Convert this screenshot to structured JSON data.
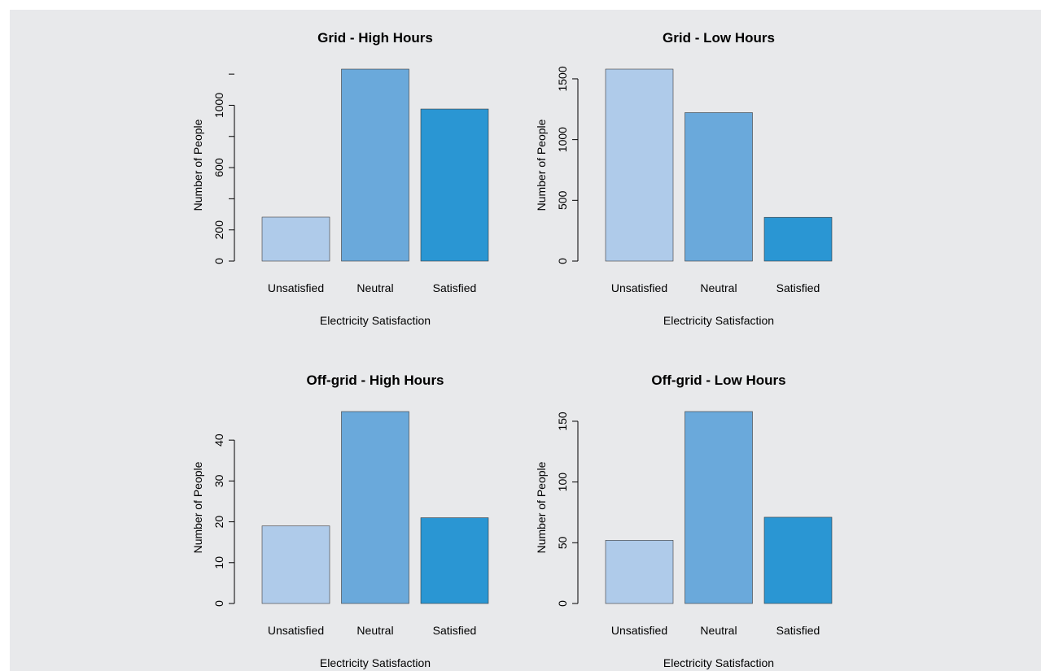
{
  "colors": {
    "background": "#e8e9eb",
    "bar_unsatisfied": "#afcbea",
    "bar_neutral": "#6aa9db",
    "bar_satisfied": "#2a96d3",
    "axis": "#000000"
  },
  "chart_data": [
    {
      "type": "bar",
      "title": "Grid - High Hours",
      "xlabel": "Electricity Satisfaction",
      "ylabel": "Number of People",
      "categories": [
        "Unsatisfied",
        "Neutral",
        "Satisfied"
      ],
      "values": [
        282,
        1232,
        976
      ],
      "yticks": [
        0,
        200,
        600,
        1000
      ],
      "ylim": [
        0,
        1232
      ],
      "grid": false
    },
    {
      "type": "bar",
      "title": "Grid - Low Hours",
      "xlabel": "Electricity Satisfaction",
      "ylabel": "Number of People",
      "categories": [
        "Unsatisfied",
        "Neutral",
        "Satisfied"
      ],
      "values": [
        1580,
        1222,
        360
      ],
      "yticks": [
        0,
        500,
        1000,
        1500
      ],
      "ylim": [
        0,
        1580
      ],
      "grid": false
    },
    {
      "type": "bar",
      "title": "Off-grid - High Hours",
      "xlabel": "Electricity Satisfaction",
      "ylabel": "Number of People",
      "categories": [
        "Unsatisfied",
        "Neutral",
        "Satisfied"
      ],
      "values": [
        19,
        47,
        21
      ],
      "yticks": [
        0,
        10,
        20,
        30,
        40
      ],
      "ylim": [
        0,
        47
      ],
      "grid": false
    },
    {
      "type": "bar",
      "title": "Off-grid - Low Hours",
      "xlabel": "Electricity Satisfaction",
      "ylabel": "Number of People",
      "categories": [
        "Unsatisfied",
        "Neutral",
        "Satisfied"
      ],
      "values": [
        52,
        158,
        71
      ],
      "yticks": [
        0,
        50,
        100,
        150
      ],
      "ylim": [
        0,
        158
      ],
      "grid": false
    }
  ]
}
